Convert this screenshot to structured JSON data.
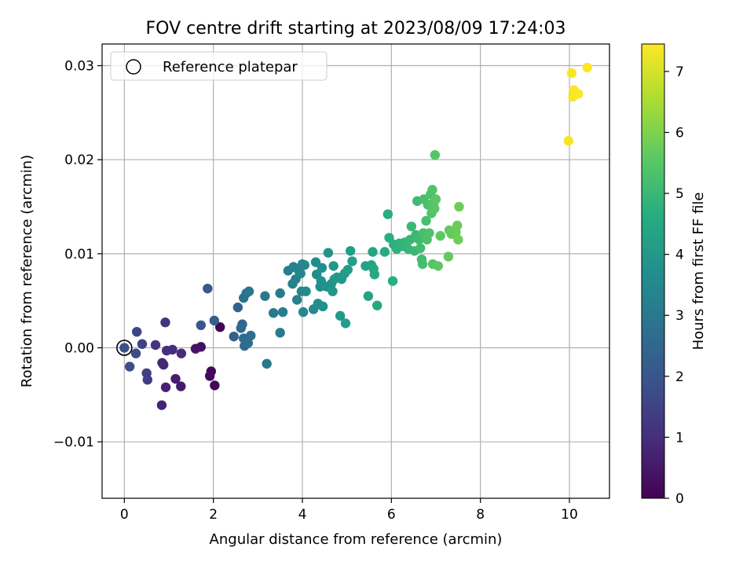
{
  "chart_data": {
    "type": "scatter",
    "title": "FOV centre drift starting at 2023/08/09 17:24:03",
    "xlabel": "Angular distance from reference (arcmin)",
    "ylabel": "Rotation from reference (arcmin)",
    "xlim": [
      -0.5,
      10.9
    ],
    "ylim": [
      -0.016,
      0.0323
    ],
    "x_ticks": [
      0,
      2,
      4,
      6,
      8,
      10
    ],
    "x_tick_labels": [
      "0",
      "2",
      "4",
      "6",
      "8",
      "10"
    ],
    "y_ticks": [
      -0.01,
      0.0,
      0.01,
      0.02,
      0.03
    ],
    "y_tick_labels": [
      "−0.01",
      "0.00",
      "0.01",
      "0.02",
      "0.03"
    ],
    "grid": true,
    "legend": {
      "placement": "top-left",
      "label": "Reference platepar"
    },
    "reference_point": {
      "x": 0.0,
      "y": 0.0
    },
    "colorbar": {
      "label": "Hours from first FF file",
      "range": [
        0,
        7.45
      ],
      "ticks": [
        0,
        1,
        2,
        3,
        4,
        5,
        6,
        7
      ],
      "tick_labels": [
        "0",
        "1",
        "2",
        "3",
        "4",
        "5",
        "6",
        "7"
      ],
      "colormap": "viridis"
    },
    "points": [
      {
        "x": 2.15,
        "y": 0.0022,
        "c": 0.05
      },
      {
        "x": 2.03,
        "y": -0.004,
        "c": 0.1
      },
      {
        "x": 1.95,
        "y": -0.0025,
        "c": 0.15
      },
      {
        "x": 1.92,
        "y": -0.003,
        "c": 0.2
      },
      {
        "x": 1.72,
        "y": 0.0001,
        "c": 0.3
      },
      {
        "x": 1.6,
        "y": -0.0001,
        "c": 0.4
      },
      {
        "x": 1.27,
        "y": -0.0041,
        "c": 0.55
      },
      {
        "x": 1.15,
        "y": -0.0033,
        "c": 0.6
      },
      {
        "x": 0.93,
        "y": -0.0042,
        "c": 0.7
      },
      {
        "x": 0.84,
        "y": -0.0061,
        "c": 0.75
      },
      {
        "x": 0.85,
        "y": -0.0016,
        "c": 0.8
      },
      {
        "x": 0.88,
        "y": -0.0018,
        "c": 0.85
      },
      {
        "x": 1.28,
        "y": -0.0006,
        "c": 0.9
      },
      {
        "x": 1.08,
        "y": -0.0002,
        "c": 0.95
      },
      {
        "x": 0.95,
        "y": -0.0003,
        "c": 1.0
      },
      {
        "x": 0.92,
        "y": 0.0027,
        "c": 1.1
      },
      {
        "x": 0.7,
        "y": 0.0003,
        "c": 1.2
      },
      {
        "x": 0.52,
        "y": -0.0034,
        "c": 1.3
      },
      {
        "x": 0.5,
        "y": -0.0027,
        "c": 1.4
      },
      {
        "x": 0.4,
        "y": 0.0004,
        "c": 1.5
      },
      {
        "x": 0.28,
        "y": 0.0017,
        "c": 1.6
      },
      {
        "x": 0.26,
        "y": -0.0006,
        "c": 1.7
      },
      {
        "x": 0.12,
        "y": -0.002,
        "c": 1.8
      },
      {
        "x": 1.72,
        "y": 0.0024,
        "c": 2.0
      },
      {
        "x": 1.87,
        "y": 0.0063,
        "c": 2.1
      },
      {
        "x": 2.02,
        "y": 0.0029,
        "c": 2.2
      },
      {
        "x": 2.46,
        "y": 0.0012,
        "c": 2.3
      },
      {
        "x": 2.55,
        "y": 0.0043,
        "c": 2.4
      },
      {
        "x": 2.65,
        "y": 0.0025,
        "c": 2.5
      },
      {
        "x": 2.62,
        "y": 0.0021,
        "c": 2.55
      },
      {
        "x": 2.7,
        "y": 0.0002,
        "c": 2.6
      },
      {
        "x": 2.68,
        "y": 0.001,
        "c": 2.65
      },
      {
        "x": 2.78,
        "y": 0.0005,
        "c": 2.7
      },
      {
        "x": 2.84,
        "y": 0.0013,
        "c": 2.75
      },
      {
        "x": 2.68,
        "y": 0.0053,
        "c": 2.8
      },
      {
        "x": 2.74,
        "y": 0.0058,
        "c": 2.85
      },
      {
        "x": 2.8,
        "y": 0.006,
        "c": 2.9
      },
      {
        "x": 3.2,
        "y": -0.0017,
        "c": 3.0
      },
      {
        "x": 3.16,
        "y": 0.0055,
        "c": 3.0
      },
      {
        "x": 3.35,
        "y": 0.0037,
        "c": 3.05
      },
      {
        "x": 3.5,
        "y": 0.0016,
        "c": 3.1
      },
      {
        "x": 3.5,
        "y": 0.0058,
        "c": 3.1
      },
      {
        "x": 3.56,
        "y": 0.0038,
        "c": 3.15
      },
      {
        "x": 3.68,
        "y": 0.0082,
        "c": 3.2
      },
      {
        "x": 3.78,
        "y": 0.0068,
        "c": 3.25
      },
      {
        "x": 3.8,
        "y": 0.0086,
        "c": 3.25
      },
      {
        "x": 3.85,
        "y": 0.0073,
        "c": 3.3
      },
      {
        "x": 3.88,
        "y": 0.0051,
        "c": 3.3
      },
      {
        "x": 3.92,
        "y": 0.0082,
        "c": 3.35
      },
      {
        "x": 3.98,
        "y": 0.006,
        "c": 3.4
      },
      {
        "x": 3.96,
        "y": 0.0079,
        "c": 3.4
      },
      {
        "x": 4.0,
        "y": 0.0089,
        "c": 3.45
      },
      {
        "x": 4.02,
        "y": 0.0038,
        "c": 3.45
      },
      {
        "x": 4.08,
        "y": 0.006,
        "c": 3.5
      },
      {
        "x": 4.05,
        "y": 0.0088,
        "c": 3.5
      },
      {
        "x": 4.25,
        "y": 0.0041,
        "c": 3.55
      },
      {
        "x": 4.3,
        "y": 0.0091,
        "c": 3.6
      },
      {
        "x": 4.32,
        "y": 0.0078,
        "c": 3.6
      },
      {
        "x": 4.35,
        "y": 0.0047,
        "c": 3.65
      },
      {
        "x": 4.4,
        "y": 0.0065,
        "c": 3.65
      },
      {
        "x": 4.44,
        "y": 0.0085,
        "c": 3.7
      },
      {
        "x": 4.46,
        "y": 0.0044,
        "c": 3.7
      },
      {
        "x": 4.42,
        "y": 0.0071,
        "c": 3.75
      },
      {
        "x": 4.55,
        "y": 0.0065,
        "c": 3.8
      },
      {
        "x": 4.58,
        "y": 0.0101,
        "c": 3.85
      },
      {
        "x": 4.65,
        "y": 0.0068,
        "c": 3.9
      },
      {
        "x": 4.68,
        "y": 0.006,
        "c": 3.9
      },
      {
        "x": 4.7,
        "y": 0.0087,
        "c": 3.95
      },
      {
        "x": 4.72,
        "y": 0.0073,
        "c": 3.95
      },
      {
        "x": 4.78,
        "y": 0.0075,
        "c": 4.0
      },
      {
        "x": 4.85,
        "y": 0.0034,
        "c": 4.05
      },
      {
        "x": 4.88,
        "y": 0.0073,
        "c": 4.05
      },
      {
        "x": 4.95,
        "y": 0.0079,
        "c": 4.1
      },
      {
        "x": 4.97,
        "y": 0.0026,
        "c": 4.1
      },
      {
        "x": 5.02,
        "y": 0.0083,
        "c": 4.15
      },
      {
        "x": 5.08,
        "y": 0.0103,
        "c": 4.2
      },
      {
        "x": 5.12,
        "y": 0.0092,
        "c": 4.2
      },
      {
        "x": 5.42,
        "y": 0.0087,
        "c": 4.3
      },
      {
        "x": 5.48,
        "y": 0.0055,
        "c": 4.35
      },
      {
        "x": 5.55,
        "y": 0.0088,
        "c": 4.4
      },
      {
        "x": 5.58,
        "y": 0.0102,
        "c": 4.4
      },
      {
        "x": 5.6,
        "y": 0.0084,
        "c": 4.45
      },
      {
        "x": 5.62,
        "y": 0.0078,
        "c": 4.5
      },
      {
        "x": 5.68,
        "y": 0.0045,
        "c": 4.5
      },
      {
        "x": 5.85,
        "y": 0.0102,
        "c": 4.6
      },
      {
        "x": 5.92,
        "y": 0.0142,
        "c": 4.65
      },
      {
        "x": 5.95,
        "y": 0.0117,
        "c": 4.7
      },
      {
        "x": 6.03,
        "y": 0.0071,
        "c": 4.7
      },
      {
        "x": 6.05,
        "y": 0.011,
        "c": 4.75
      },
      {
        "x": 6.12,
        "y": 0.0105,
        "c": 4.8
      },
      {
        "x": 6.18,
        "y": 0.0111,
        "c": 4.8
      },
      {
        "x": 6.25,
        "y": 0.0108,
        "c": 4.85
      },
      {
        "x": 6.3,
        "y": 0.0112,
        "c": 4.9
      },
      {
        "x": 6.38,
        "y": 0.0105,
        "c": 4.95
      },
      {
        "x": 6.42,
        "y": 0.0115,
        "c": 4.95
      },
      {
        "x": 6.45,
        "y": 0.0129,
        "c": 5.0
      },
      {
        "x": 6.52,
        "y": 0.0103,
        "c": 5.0
      },
      {
        "x": 6.55,
        "y": 0.012,
        "c": 5.05
      },
      {
        "x": 6.58,
        "y": 0.0156,
        "c": 5.1
      },
      {
        "x": 6.62,
        "y": 0.0115,
        "c": 5.1
      },
      {
        "x": 6.65,
        "y": 0.0106,
        "c": 5.15
      },
      {
        "x": 6.68,
        "y": 0.0094,
        "c": 5.15
      },
      {
        "x": 6.7,
        "y": 0.0089,
        "c": 5.2
      },
      {
        "x": 6.72,
        "y": 0.0122,
        "c": 5.2
      },
      {
        "x": 6.73,
        "y": 0.0158,
        "c": 5.25
      },
      {
        "x": 6.78,
        "y": 0.0135,
        "c": 5.25
      },
      {
        "x": 6.8,
        "y": 0.0115,
        "c": 5.3
      },
      {
        "x": 6.82,
        "y": 0.0152,
        "c": 5.3
      },
      {
        "x": 6.85,
        "y": 0.0122,
        "c": 5.35
      },
      {
        "x": 6.88,
        "y": 0.0163,
        "c": 5.35
      },
      {
        "x": 6.9,
        "y": 0.0143,
        "c": 5.4
      },
      {
        "x": 6.92,
        "y": 0.0168,
        "c": 5.4
      },
      {
        "x": 6.93,
        "y": 0.0089,
        "c": 5.45
      },
      {
        "x": 6.95,
        "y": 0.0154,
        "c": 5.45
      },
      {
        "x": 6.97,
        "y": 0.0148,
        "c": 5.5
      },
      {
        "x": 6.98,
        "y": 0.0205,
        "c": 5.5
      },
      {
        "x": 7.0,
        "y": 0.0158,
        "c": 5.55
      },
      {
        "x": 7.05,
        "y": 0.0087,
        "c": 5.6
      },
      {
        "x": 7.1,
        "y": 0.0119,
        "c": 5.6
      },
      {
        "x": 7.28,
        "y": 0.0097,
        "c": 5.65
      },
      {
        "x": 7.3,
        "y": 0.0125,
        "c": 5.7
      },
      {
        "x": 7.35,
        "y": 0.0121,
        "c": 5.7
      },
      {
        "x": 7.45,
        "y": 0.0123,
        "c": 5.75
      },
      {
        "x": 7.48,
        "y": 0.013,
        "c": 5.75
      },
      {
        "x": 7.5,
        "y": 0.0115,
        "c": 5.8
      },
      {
        "x": 7.52,
        "y": 0.015,
        "c": 5.8
      },
      {
        "x": 9.98,
        "y": 0.022,
        "c": 7.35
      },
      {
        "x": 10.05,
        "y": 0.0292,
        "c": 7.38
      },
      {
        "x": 10.08,
        "y": 0.0267,
        "c": 7.4
      },
      {
        "x": 10.1,
        "y": 0.0274,
        "c": 7.4
      },
      {
        "x": 10.15,
        "y": 0.0271,
        "c": 7.42
      },
      {
        "x": 10.2,
        "y": 0.027,
        "c": 7.42
      },
      {
        "x": 10.4,
        "y": 0.0298,
        "c": 7.45
      },
      {
        "x": 0.0,
        "y": 0.0,
        "c": 1.9
      }
    ]
  }
}
